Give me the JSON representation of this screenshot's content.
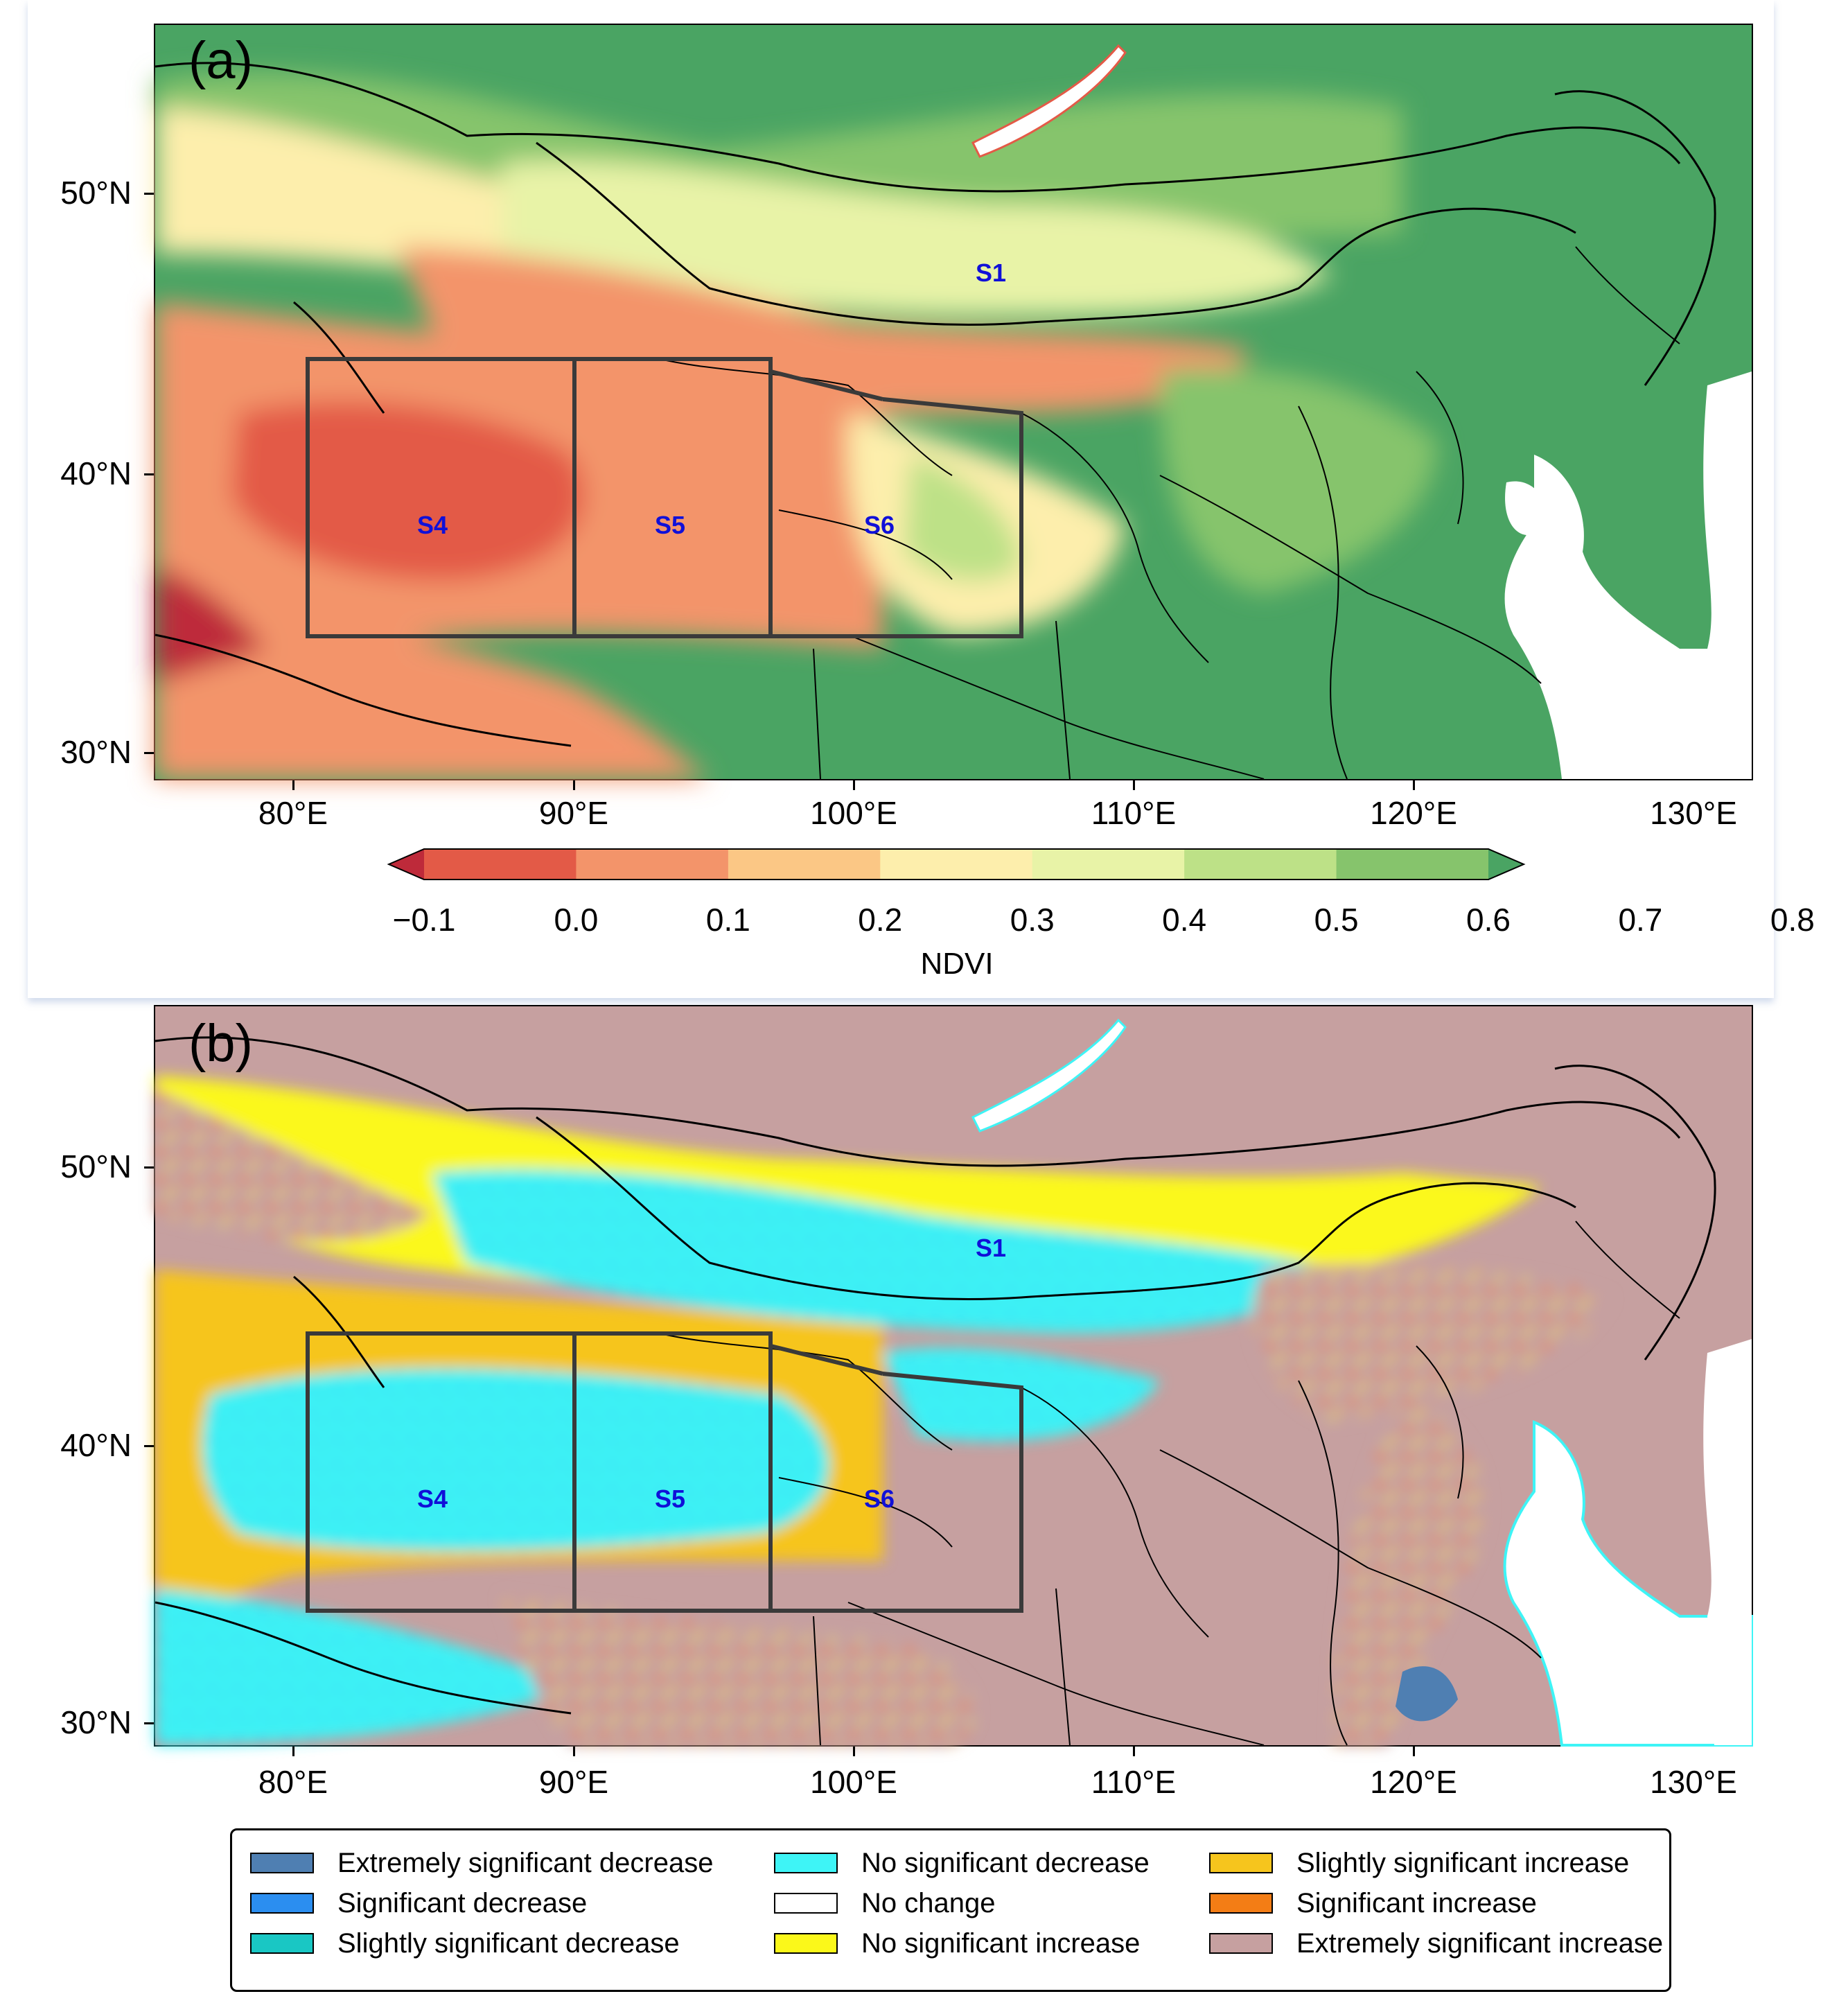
{
  "panel_a": {
    "label": "(a)",
    "lat_ticks": [
      "50°N",
      "40°N",
      "30°N"
    ],
    "lon_ticks": [
      "80°E",
      "90°E",
      "100°E",
      "110°E",
      "120°E",
      "130°E"
    ],
    "regions": [
      "S1",
      "S4",
      "S5",
      "S6"
    ],
    "colorbar": {
      "title": "NDVI",
      "ticks": [
        "−0.1",
        "0.0",
        "0.1",
        "0.2",
        "0.3",
        "0.4",
        "0.5",
        "0.6",
        "0.7",
        "0.8"
      ],
      "colors": [
        "#be2a3a",
        "#e35a47",
        "#f3946a",
        "#fbc785",
        "#fdeeac",
        "#e8f3a7",
        "#bde187",
        "#86c46c",
        "#4aa463"
      ]
    }
  },
  "panel_b": {
    "label": "(b)",
    "lat_ticks": [
      "50°N",
      "40°N",
      "30°N"
    ],
    "lon_ticks": [
      "80°E",
      "90°E",
      "100°E",
      "110°E",
      "120°E",
      "130°E"
    ],
    "regions": [
      "S1",
      "S4",
      "S5",
      "S6"
    ]
  },
  "legend": {
    "items": [
      {
        "label": "Extremely significant decrease",
        "color": "#4f7fb2"
      },
      {
        "label": "Significant decrease",
        "color": "#2b8ef0"
      },
      {
        "label": "Slightly significant decrease",
        "color": "#19c7c4"
      },
      {
        "label": "No significant decrease",
        "color": "#3ef4f6"
      },
      {
        "label": "No change",
        "color": "#ffffff"
      },
      {
        "label": "No significant increase",
        "color": "#fbf81a"
      },
      {
        "label": "Slightly significant increase",
        "color": "#f6c51d"
      },
      {
        "label": "Significant increase",
        "color": "#f37d15"
      },
      {
        "label": "Extremely significant increase",
        "color": "#c6a0a0"
      }
    ]
  }
}
